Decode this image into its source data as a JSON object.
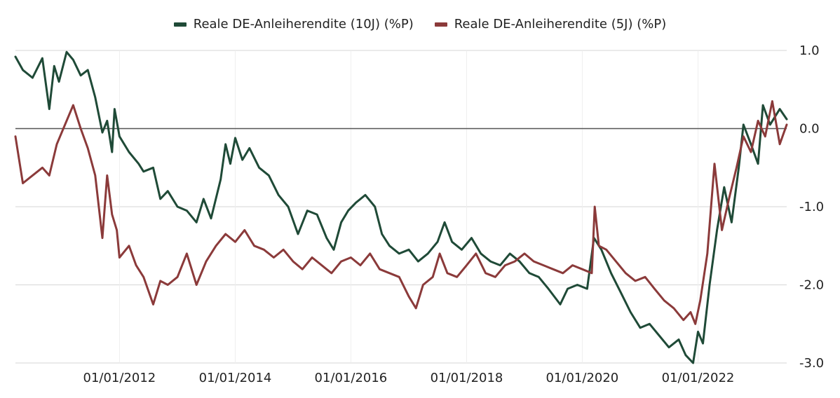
{
  "chart_data": {
    "type": "line",
    "legend_position": "top-center",
    "grid": true,
    "ylim": [
      -3.0,
      1.0
    ],
    "y_ticks": [
      "1.0",
      "0.0",
      "-1.0",
      "-2.0",
      "-3.0"
    ],
    "y_tick_values": [
      1.0,
      0.0,
      -1.0,
      -2.0,
      -3.0
    ],
    "x_ticks": [
      "01/01/2012",
      "01/01/2014",
      "01/01/2016",
      "01/01/2018",
      "01/01/2020",
      "01/01/2022"
    ],
    "x_tick_values": [
      "2012-01-01",
      "2014-01-01",
      "2016-01-01",
      "2018-01-01",
      "2020-01-01",
      "2022-01-01"
    ],
    "xlim": [
      "2010-03-15",
      "2023-07-15"
    ],
    "colors": {
      "series_10y": "#1f4a37",
      "series_5y": "#8b3a3a",
      "zero_line": "#555555",
      "grid": "#dddddd"
    },
    "series": [
      {
        "name": "Reale DE-Anleiherendite (10J) (%P)",
        "color": "#1f4a37",
        "points": [
          [
            "2010-03-15",
            0.92
          ],
          [
            "2010-05-01",
            0.75
          ],
          [
            "2010-07-01",
            0.65
          ],
          [
            "2010-09-01",
            0.9
          ],
          [
            "2010-10-15",
            0.25
          ],
          [
            "2010-11-15",
            0.8
          ],
          [
            "2010-12-15",
            0.6
          ],
          [
            "2011-02-01",
            0.98
          ],
          [
            "2011-03-15",
            0.88
          ],
          [
            "2011-05-01",
            0.68
          ],
          [
            "2011-06-15",
            0.75
          ],
          [
            "2011-08-01",
            0.4
          ],
          [
            "2011-09-15",
            -0.05
          ],
          [
            "2011-10-15",
            0.1
          ],
          [
            "2011-11-15",
            -0.3
          ],
          [
            "2011-12-01",
            0.25
          ],
          [
            "2012-01-01",
            -0.1
          ],
          [
            "2012-03-01",
            -0.3
          ],
          [
            "2012-05-01",
            -0.45
          ],
          [
            "2012-06-01",
            -0.55
          ],
          [
            "2012-08-01",
            -0.5
          ],
          [
            "2012-09-15",
            -0.9
          ],
          [
            "2012-11-01",
            -0.8
          ],
          [
            "2013-01-01",
            -1.0
          ],
          [
            "2013-03-01",
            -1.05
          ],
          [
            "2013-05-01",
            -1.2
          ],
          [
            "2013-06-15",
            -0.9
          ],
          [
            "2013-08-01",
            -1.15
          ],
          [
            "2013-10-01",
            -0.65
          ],
          [
            "2013-11-01",
            -0.2
          ],
          [
            "2013-12-01",
            -0.45
          ],
          [
            "2014-01-01",
            -0.12
          ],
          [
            "2014-02-15",
            -0.4
          ],
          [
            "2014-04-01",
            -0.25
          ],
          [
            "2014-06-01",
            -0.5
          ],
          [
            "2014-08-01",
            -0.6
          ],
          [
            "2014-10-01",
            -0.85
          ],
          [
            "2014-12-01",
            -1.0
          ],
          [
            "2015-02-01",
            -1.35
          ],
          [
            "2015-04-01",
            -1.05
          ],
          [
            "2015-06-01",
            -1.1
          ],
          [
            "2015-08-01",
            -1.4
          ],
          [
            "2015-09-15",
            -1.55
          ],
          [
            "2015-11-01",
            -1.2
          ],
          [
            "2015-12-15",
            -1.05
          ],
          [
            "2016-02-01",
            -0.95
          ],
          [
            "2016-04-01",
            -0.85
          ],
          [
            "2016-06-01",
            -1.0
          ],
          [
            "2016-07-15",
            -1.35
          ],
          [
            "2016-09-01",
            -1.5
          ],
          [
            "2016-11-01",
            -1.6
          ],
          [
            "2017-01-01",
            -1.55
          ],
          [
            "2017-03-01",
            -1.7
          ],
          [
            "2017-05-01",
            -1.6
          ],
          [
            "2017-07-01",
            -1.45
          ],
          [
            "2017-08-15",
            -1.2
          ],
          [
            "2017-10-01",
            -1.45
          ],
          [
            "2017-12-01",
            -1.55
          ],
          [
            "2018-02-01",
            -1.4
          ],
          [
            "2018-04-01",
            -1.6
          ],
          [
            "2018-06-01",
            -1.7
          ],
          [
            "2018-08-01",
            -1.75
          ],
          [
            "2018-10-01",
            -1.6
          ],
          [
            "2018-12-01",
            -1.7
          ],
          [
            "2019-02-01",
            -1.85
          ],
          [
            "2019-04-01",
            -1.9
          ],
          [
            "2019-06-01",
            -2.05
          ],
          [
            "2019-08-15",
            -2.25
          ],
          [
            "2019-10-01",
            -2.05
          ],
          [
            "2019-12-01",
            -2.0
          ],
          [
            "2020-02-01",
            -2.05
          ],
          [
            "2020-03-15",
            -1.4
          ],
          [
            "2020-05-01",
            -1.55
          ],
          [
            "2020-07-01",
            -1.85
          ],
          [
            "2020-09-01",
            -2.1
          ],
          [
            "2020-11-01",
            -2.35
          ],
          [
            "2021-01-01",
            -2.55
          ],
          [
            "2021-03-01",
            -2.5
          ],
          [
            "2021-05-01",
            -2.65
          ],
          [
            "2021-07-01",
            -2.8
          ],
          [
            "2021-09-01",
            -2.7
          ],
          [
            "2021-10-15",
            -2.9
          ],
          [
            "2021-12-01",
            -3.0
          ],
          [
            "2022-01-01",
            -2.6
          ],
          [
            "2022-02-01",
            -2.75
          ],
          [
            "2022-03-15",
            -2.0
          ],
          [
            "2022-05-01",
            -1.3
          ],
          [
            "2022-06-15",
            -0.75
          ],
          [
            "2022-08-01",
            -1.2
          ],
          [
            "2022-09-15",
            -0.5
          ],
          [
            "2022-10-15",
            0.05
          ],
          [
            "2022-12-01",
            -0.2
          ],
          [
            "2023-01-15",
            -0.45
          ],
          [
            "2023-02-15",
            0.3
          ],
          [
            "2023-04-01",
            0.05
          ],
          [
            "2023-06-01",
            0.25
          ],
          [
            "2023-07-15",
            0.12
          ]
        ]
      },
      {
        "name": "Reale DE-Anleiherendite (5J) (%P)",
        "color": "#8b3a3a",
        "points": [
          [
            "2010-03-15",
            -0.1
          ],
          [
            "2010-05-01",
            -0.7
          ],
          [
            "2010-07-01",
            -0.6
          ],
          [
            "2010-09-01",
            -0.5
          ],
          [
            "2010-10-15",
            -0.6
          ],
          [
            "2010-12-01",
            -0.2
          ],
          [
            "2011-02-01",
            0.1
          ],
          [
            "2011-03-15",
            0.3
          ],
          [
            "2011-05-01",
            0.0
          ],
          [
            "2011-06-15",
            -0.25
          ],
          [
            "2011-08-01",
            -0.6
          ],
          [
            "2011-09-15",
            -1.4
          ],
          [
            "2011-10-15",
            -0.6
          ],
          [
            "2011-11-15",
            -1.1
          ],
          [
            "2011-12-15",
            -1.3
          ],
          [
            "2012-01-01",
            -1.65
          ],
          [
            "2012-03-01",
            -1.5
          ],
          [
            "2012-04-15",
            -1.75
          ],
          [
            "2012-06-01",
            -1.9
          ],
          [
            "2012-08-01",
            -2.25
          ],
          [
            "2012-09-15",
            -1.95
          ],
          [
            "2012-11-01",
            -2.0
          ],
          [
            "2013-01-01",
            -1.9
          ],
          [
            "2013-03-01",
            -1.6
          ],
          [
            "2013-05-01",
            -2.0
          ],
          [
            "2013-07-01",
            -1.7
          ],
          [
            "2013-09-01",
            -1.5
          ],
          [
            "2013-11-01",
            -1.35
          ],
          [
            "2014-01-01",
            -1.45
          ],
          [
            "2014-03-01",
            -1.3
          ],
          [
            "2014-05-01",
            -1.5
          ],
          [
            "2014-07-01",
            -1.55
          ],
          [
            "2014-09-01",
            -1.65
          ],
          [
            "2014-11-01",
            -1.55
          ],
          [
            "2015-01-01",
            -1.7
          ],
          [
            "2015-03-01",
            -1.8
          ],
          [
            "2015-05-01",
            -1.65
          ],
          [
            "2015-07-01",
            -1.75
          ],
          [
            "2015-09-01",
            -1.85
          ],
          [
            "2015-11-01",
            -1.7
          ],
          [
            "2016-01-01",
            -1.65
          ],
          [
            "2016-03-01",
            -1.75
          ],
          [
            "2016-05-01",
            -1.6
          ],
          [
            "2016-07-01",
            -1.8
          ],
          [
            "2016-09-01",
            -1.85
          ],
          [
            "2016-11-01",
            -1.9
          ],
          [
            "2017-01-01",
            -2.15
          ],
          [
            "2017-02-15",
            -2.3
          ],
          [
            "2017-04-01",
            -2.0
          ],
          [
            "2017-06-01",
            -1.9
          ],
          [
            "2017-07-15",
            -1.6
          ],
          [
            "2017-09-01",
            -1.85
          ],
          [
            "2017-11-01",
            -1.9
          ],
          [
            "2018-01-01",
            -1.75
          ],
          [
            "2018-03-01",
            -1.6
          ],
          [
            "2018-05-01",
            -1.85
          ],
          [
            "2018-07-01",
            -1.9
          ],
          [
            "2018-09-01",
            -1.75
          ],
          [
            "2018-11-01",
            -1.7
          ],
          [
            "2019-01-01",
            -1.6
          ],
          [
            "2019-03-01",
            -1.7
          ],
          [
            "2019-05-01",
            -1.75
          ],
          [
            "2019-07-01",
            -1.8
          ],
          [
            "2019-09-01",
            -1.85
          ],
          [
            "2019-11-01",
            -1.75
          ],
          [
            "2020-01-01",
            -1.8
          ],
          [
            "2020-03-01",
            -1.85
          ],
          [
            "2020-03-20",
            -1.0
          ],
          [
            "2020-04-15",
            -1.5
          ],
          [
            "2020-06-01",
            -1.55
          ],
          [
            "2020-08-01",
            -1.7
          ],
          [
            "2020-10-01",
            -1.85
          ],
          [
            "2020-12-01",
            -1.95
          ],
          [
            "2021-02-01",
            -1.9
          ],
          [
            "2021-04-01",
            -2.05
          ],
          [
            "2021-06-01",
            -2.2
          ],
          [
            "2021-08-01",
            -2.3
          ],
          [
            "2021-10-01",
            -2.45
          ],
          [
            "2021-11-15",
            -2.35
          ],
          [
            "2021-12-15",
            -2.5
          ],
          [
            "2022-01-15",
            -2.2
          ],
          [
            "2022-03-01",
            -1.6
          ],
          [
            "2022-04-15",
            -0.45
          ],
          [
            "2022-06-01",
            -1.3
          ],
          [
            "2022-07-15",
            -0.9
          ],
          [
            "2022-09-01",
            -0.5
          ],
          [
            "2022-10-15",
            -0.1
          ],
          [
            "2022-12-01",
            -0.3
          ],
          [
            "2023-01-15",
            0.1
          ],
          [
            "2023-03-01",
            -0.1
          ],
          [
            "2023-04-15",
            0.35
          ],
          [
            "2023-06-01",
            -0.2
          ],
          [
            "2023-07-15",
            0.05
          ]
        ]
      }
    ]
  }
}
